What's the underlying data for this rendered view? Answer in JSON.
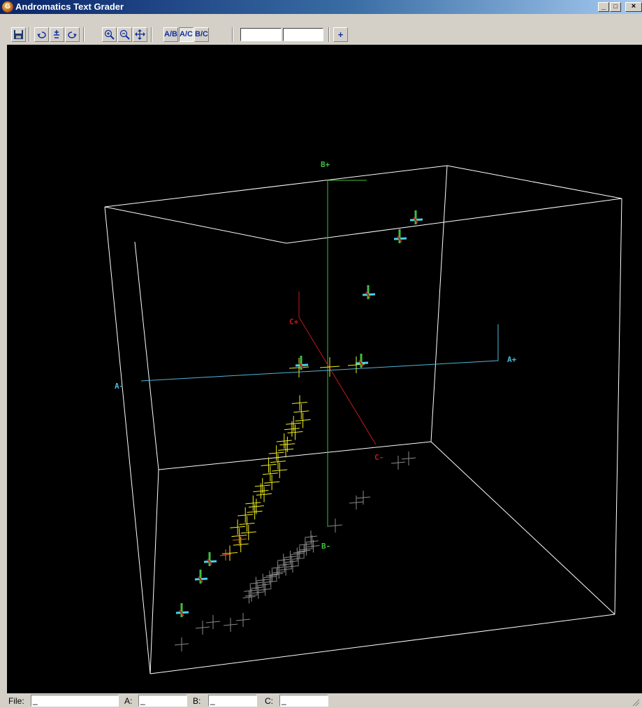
{
  "window": {
    "title": "Andromatics Text Grader",
    "app_icon_letter": "G",
    "controls": {
      "minimize": "_",
      "maximize": "□",
      "close": "×"
    }
  },
  "toolbar": {
    "buttons": [
      {
        "name": "save",
        "icon": "floppy-disk-icon"
      },
      {
        "name": "rotate-left",
        "icon": "rotate-left-icon"
      },
      {
        "name": "move-up-down",
        "icon": "plus-minus-icon"
      },
      {
        "name": "rotate-right",
        "icon": "rotate-right-icon"
      },
      {
        "name": "zoom-in",
        "icon": "zoom-in-icon"
      },
      {
        "name": "zoom-out",
        "icon": "zoom-out-icon"
      },
      {
        "name": "pan",
        "icon": "pan-icon"
      },
      {
        "name": "view-a-b",
        "label": "A/B"
      },
      {
        "name": "view-a-c",
        "label": "A/C",
        "pressed": true
      },
      {
        "name": "view-b-c",
        "label": "B/C"
      },
      {
        "name": "add",
        "label": "+"
      }
    ]
  },
  "axes": {
    "a_plus": "A+",
    "a_minus": "A-",
    "b_plus": "B+",
    "b_minus": "B-",
    "c_plus": "C+",
    "c_minus": "C-",
    "colors": {
      "a": "#4fb6d8",
      "b": "#3fbf3f",
      "c": "#c21a1a",
      "box": "#ffffff",
      "yellow": "#f0f020",
      "gray": "#8a8a8a",
      "cyan": "#46d4f0"
    }
  },
  "status": {
    "file_label": "File:",
    "file_value": "_",
    "a_label": "A:",
    "a_value": "_",
    "b_label": "B:",
    "b_value": "_",
    "c_label": "C:",
    "c_value": "_"
  }
}
